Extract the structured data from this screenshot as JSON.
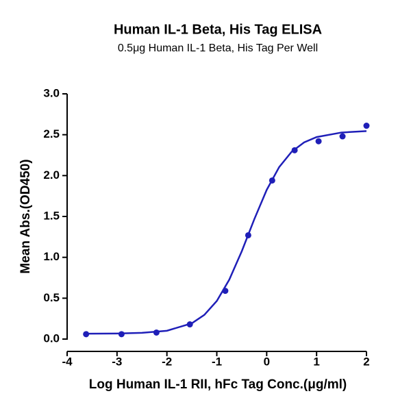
{
  "chart_data": {
    "type": "scatter",
    "title": "Human IL-1 Beta, His Tag ELISA",
    "subtitle": "0.5μg Human IL-1 Beta, His Tag Per Well",
    "x_label": "Log Human IL-1 RII, hFc Tag Conc.(μg/ml)",
    "y_label": "Mean Abs.(OD450)",
    "xlim": [
      -4,
      2
    ],
    "xticks": [
      -4,
      -3,
      -2,
      -1,
      0,
      1,
      2
    ],
    "ylim": [
      0,
      3
    ],
    "yticks": [
      {
        "value": 0,
        "label": "0.0"
      },
      {
        "value": 0.5,
        "label": "0.5"
      },
      {
        "value": 1,
        "label": "1.0"
      },
      {
        "value": 1.5,
        "label": "1.5"
      },
      {
        "value": 2,
        "label": "2.0"
      },
      {
        "value": 2.5,
        "label": "2.5"
      },
      {
        "value": 3,
        "label": "3.0"
      }
    ],
    "series": [
      {
        "type": "scatter",
        "color": "#1f1fb8",
        "x": [
          -3.62,
          -2.91,
          -2.21,
          -1.54,
          -0.83,
          -0.37,
          0.11,
          0.56,
          1.04,
          1.52,
          2.0
        ],
        "values": [
          0.06,
          0.06,
          0.08,
          0.18,
          0.59,
          1.27,
          1.94,
          2.31,
          2.42,
          2.48,
          2.61
        ]
      },
      {
        "type": "line",
        "color": "#1f1fb8",
        "x": [
          -3.62,
          -3.0,
          -2.5,
          -2.0,
          -1.5,
          -1.25,
          -1.0,
          -0.75,
          -0.5,
          -0.25,
          0,
          0.25,
          0.5,
          0.75,
          1.0,
          1.5,
          2.0
        ],
        "values": [
          0.066,
          0.068,
          0.076,
          0.102,
          0.193,
          0.296,
          0.466,
          0.727,
          1.074,
          1.464,
          1.825,
          2.104,
          2.292,
          2.406,
          2.471,
          2.527,
          2.544
        ]
      }
    ]
  }
}
